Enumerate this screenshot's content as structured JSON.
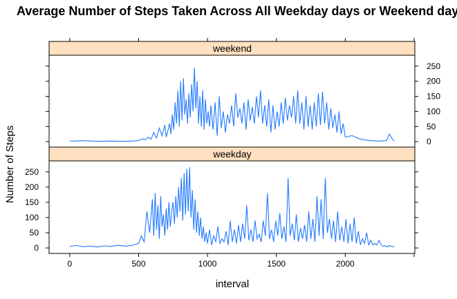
{
  "chart_data": {
    "type": "line",
    "title": "Average Number of Steps Taken Across All Weekday days or Weekend days",
    "xlabel": "interval",
    "ylabel": "Number of Steps",
    "xlim": [
      -150,
      2505
    ],
    "ylim": [
      -18,
      286
    ],
    "x_ticks": [
      0,
      500,
      1000,
      1500,
      2000
    ],
    "y_ticks": [
      0,
      50,
      100,
      150,
      200,
      250
    ],
    "line_color": "#1f78ff",
    "strip_color": "#ffe0c0",
    "panels": [
      {
        "name": "weekend",
        "strip_label": "weekend",
        "y_ticks_side": "right",
        "x": [
          0,
          100,
          200,
          300,
          400,
          450,
          500,
          530,
          550,
          570,
          590,
          610,
          630,
          650,
          670,
          690,
          700,
          715,
          725,
          735,
          745,
          755,
          765,
          775,
          785,
          795,
          805,
          815,
          825,
          835,
          845,
          855,
          865,
          875,
          885,
          895,
          905,
          915,
          925,
          935,
          945,
          955,
          965,
          975,
          985,
          995,
          1005,
          1015,
          1025,
          1040,
          1055,
          1070,
          1085,
          1100,
          1115,
          1130,
          1145,
          1160,
          1175,
          1190,
          1205,
          1220,
          1235,
          1250,
          1265,
          1280,
          1295,
          1310,
          1325,
          1340,
          1355,
          1370,
          1385,
          1400,
          1415,
          1430,
          1445,
          1460,
          1475,
          1490,
          1505,
          1520,
          1535,
          1550,
          1565,
          1580,
          1595,
          1610,
          1625,
          1640,
          1655,
          1670,
          1685,
          1700,
          1715,
          1730,
          1745,
          1760,
          1775,
          1790,
          1805,
          1820,
          1835,
          1850,
          1865,
          1880,
          1895,
          1910,
          1925,
          1940,
          1955,
          1970,
          1985,
          2000,
          2050,
          2100,
          2150,
          2200,
          2250,
          2300,
          2320,
          2340,
          2355
        ],
        "values": [
          2,
          3,
          1,
          2,
          1,
          2,
          4,
          10,
          6,
          15,
          8,
          30,
          12,
          45,
          20,
          55,
          15,
          40,
          60,
          25,
          90,
          40,
          130,
          60,
          170,
          50,
          200,
          70,
          210,
          90,
          140,
          60,
          160,
          80,
          190,
          100,
          245,
          110,
          200,
          60,
          150,
          50,
          170,
          40,
          140,
          60,
          100,
          50,
          120,
          40,
          130,
          20,
          150,
          45,
          100,
          30,
          90,
          60,
          120,
          50,
          160,
          80,
          110,
          60,
          130,
          40,
          140,
          70,
          115,
          60,
          150,
          80,
          170,
          60,
          120,
          50,
          140,
          30,
          120,
          40,
          100,
          50,
          130,
          60,
          145,
          70,
          120,
          80,
          150,
          60,
          170,
          60,
          130,
          40,
          150,
          50,
          120,
          40,
          130,
          50,
          160,
          55,
          165,
          60,
          130,
          40,
          110,
          45,
          90,
          30,
          100,
          25,
          60,
          15,
          20,
          10,
          5,
          3,
          2,
          4,
          25,
          10,
          2
        ]
      },
      {
        "name": "weekday",
        "strip_label": "weekday",
        "y_ticks_side": "left",
        "x": [
          0,
          50,
          100,
          150,
          200,
          250,
          300,
          350,
          400,
          450,
          500,
          520,
          540,
          560,
          580,
          600,
          610,
          620,
          630,
          640,
          650,
          660,
          670,
          680,
          690,
          700,
          710,
          720,
          730,
          740,
          750,
          760,
          770,
          780,
          790,
          800,
          810,
          820,
          830,
          840,
          850,
          860,
          870,
          880,
          890,
          900,
          910,
          920,
          930,
          940,
          950,
          960,
          970,
          980,
          990,
          1000,
          1015,
          1030,
          1045,
          1060,
          1075,
          1090,
          1105,
          1120,
          1135,
          1150,
          1165,
          1180,
          1195,
          1210,
          1225,
          1240,
          1255,
          1270,
          1285,
          1300,
          1315,
          1330,
          1345,
          1360,
          1375,
          1390,
          1405,
          1420,
          1435,
          1450,
          1465,
          1480,
          1495,
          1510,
          1525,
          1540,
          1555,
          1570,
          1585,
          1600,
          1615,
          1630,
          1645,
          1660,
          1675,
          1690,
          1705,
          1720,
          1735,
          1750,
          1765,
          1780,
          1795,
          1810,
          1825,
          1840,
          1855,
          1870,
          1885,
          1900,
          1915,
          1930,
          1945,
          1960,
          1975,
          1990,
          2005,
          2020,
          2035,
          2050,
          2065,
          2080,
          2095,
          2110,
          2125,
          2140,
          2155,
          2170,
          2185,
          2200,
          2215,
          2230,
          2245,
          2260,
          2275,
          2290,
          2305,
          2320,
          2335,
          2355
        ],
        "values": [
          5,
          8,
          4,
          6,
          3,
          7,
          5,
          9,
          6,
          8,
          15,
          40,
          20,
          120,
          50,
          160,
          40,
          180,
          60,
          140,
          30,
          170,
          70,
          110,
          40,
          130,
          60,
          150,
          70,
          120,
          150,
          80,
          170,
          100,
          200,
          120,
          230,
          90,
          245,
          110,
          260,
          120,
          265,
          100,
          190,
          60,
          160,
          50,
          120,
          40,
          100,
          30,
          70,
          20,
          50,
          15,
          60,
          10,
          40,
          20,
          70,
          15,
          30,
          20,
          55,
          10,
          90,
          20,
          60,
          15,
          75,
          20,
          80,
          30,
          140,
          25,
          60,
          20,
          90,
          30,
          45,
          20,
          90,
          40,
          180,
          30,
          60,
          20,
          90,
          40,
          115,
          30,
          70,
          20,
          230,
          40,
          80,
          25,
          110,
          20,
          65,
          30,
          75,
          20,
          120,
          30,
          95,
          20,
          170,
          40,
          160,
          30,
          230,
          50,
          95,
          30,
          90,
          20,
          120,
          25,
          70,
          20,
          95,
          15,
          80,
          20,
          100,
          15,
          55,
          10,
          30,
          15,
          50,
          10,
          25,
          10,
          15,
          10,
          25,
          10,
          5,
          8,
          3,
          8,
          5,
          3
        ]
      }
    ]
  }
}
